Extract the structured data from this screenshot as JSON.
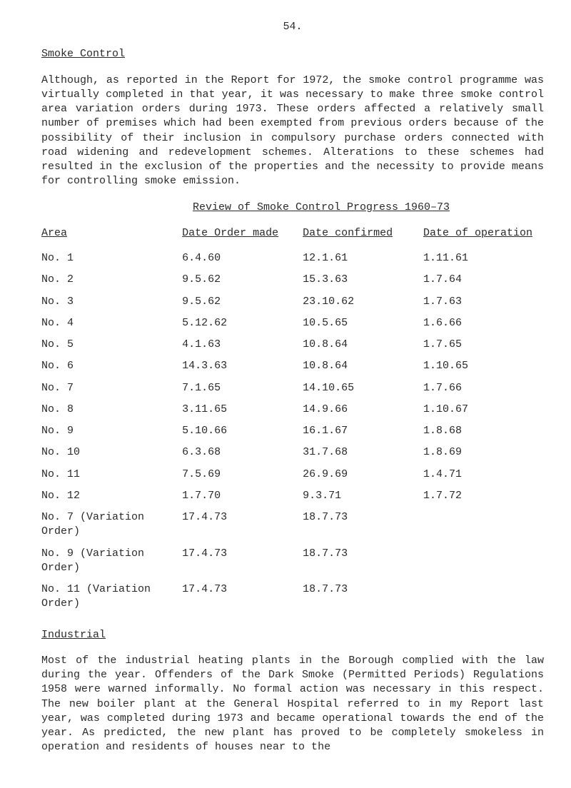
{
  "page_number": "54.",
  "heading1": "Smoke Control",
  "para1": "Although, as reported in the Report for 1972, the smoke control programme was virtually completed in that year, it was necessary to make three smoke control area variation orders during 1973.  These orders affected a relatively small number of premises which had been exempted from previous orders because of the possibility of their inclusion in compulsory purchase orders connected with road widening and redevelopment schemes. Alterations to these schemes had resulted in the exclusion of the properties and the necessity to provide means for controlling smoke emission.",
  "review_title": "Review of Smoke Control Progress 1960–73",
  "columns": {
    "area": "Area",
    "made": "Date Order made",
    "confirmed": "Date confirmed",
    "operation": "Date of operation"
  },
  "rows": [
    {
      "area": "No.  1",
      "made": "6.4.60",
      "confirmed": "12.1.61",
      "operation": "1.11.61"
    },
    {
      "area": "No.  2",
      "made": "9.5.62",
      "confirmed": "15.3.63",
      "operation": "1.7.64"
    },
    {
      "area": "No.  3",
      "made": "9.5.62",
      "confirmed": "23.10.62",
      "operation": "1.7.63"
    },
    {
      "area": "No.  4",
      "made": "5.12.62",
      "confirmed": "10.5.65",
      "operation": "1.6.66"
    },
    {
      "area": "No.  5",
      "made": "4.1.63",
      "confirmed": "10.8.64",
      "operation": "1.7.65"
    },
    {
      "area": "No.  6",
      "made": "14.3.63",
      "confirmed": "10.8.64",
      "operation": "1.10.65"
    },
    {
      "area": "No.  7",
      "made": "7.1.65",
      "confirmed": "14.10.65",
      "operation": "1.7.66"
    },
    {
      "area": "No.  8",
      "made": "3.11.65",
      "confirmed": "14.9.66",
      "operation": "1.10.67"
    },
    {
      "area": "No.  9",
      "made": "5.10.66",
      "confirmed": "16.1.67",
      "operation": "1.8.68"
    },
    {
      "area": "No. 10",
      "made": "6.3.68",
      "confirmed": "31.7.68",
      "operation": "1.8.69"
    },
    {
      "area": "No. 11",
      "made": "7.5.69",
      "confirmed": "26.9.69",
      "operation": "1.4.71"
    },
    {
      "area": "No. 12",
      "made": "1.7.70",
      "confirmed": "9.3.71",
      "operation": "1.7.72"
    },
    {
      "area": "No.  7 (Variation Order)",
      "made": "17.4.73",
      "confirmed": "18.7.73",
      "operation": ""
    },
    {
      "area": "No.  9 (Variation Order)",
      "made": "17.4.73",
      "confirmed": "18.7.73",
      "operation": ""
    },
    {
      "area": "No. 11 (Variation Order)",
      "made": "17.4.73",
      "confirmed": "18.7.73",
      "operation": ""
    }
  ],
  "heading2": "Industrial",
  "para2": "Most of the industrial heating plants in the Borough complied with the law during the year.  Offenders of the Dark Smoke (Permitted Periods) Regulations 1958 were warned informally.  No formal action was necessary in this respect.  The new boiler plant at the General Hospital referred to in my Report last year, was completed during 1973 and became operational towards the end of the year.  As predicted, the new plant has proved to be completely smokeless in operation and residents of houses near to the"
}
